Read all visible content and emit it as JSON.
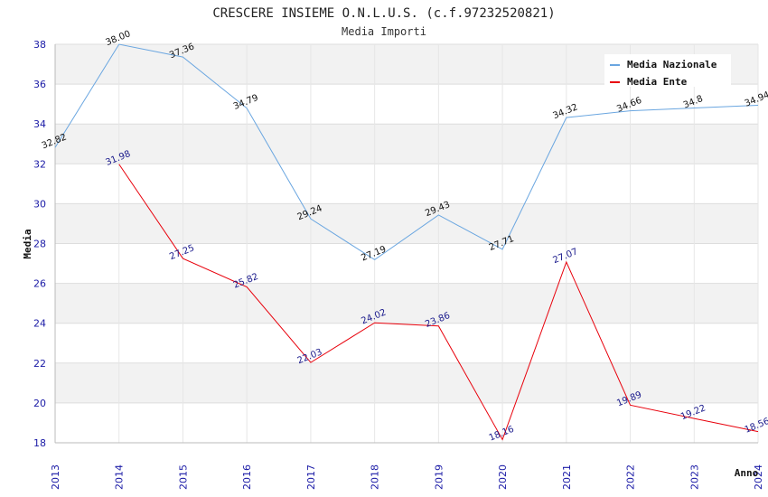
{
  "chart_data": {
    "type": "line",
    "title": "CRESCERE INSIEME O.N.L.U.S. (c.f.97232520821)",
    "subtitle": "Media Importi",
    "xlabel": "Anno",
    "ylabel": "Media",
    "ylim": [
      18,
      38
    ],
    "yticks": [
      "18",
      "20",
      "22",
      "24",
      "26",
      "28",
      "30",
      "32",
      "34",
      "36",
      "38"
    ],
    "categories": [
      "2013",
      "2014",
      "2015",
      "2016",
      "2017",
      "2018",
      "2019",
      "2020",
      "2021",
      "2022",
      "2023",
      "2024"
    ],
    "grid": true,
    "legend_position": "top-right",
    "series": [
      {
        "name": "Media Nazionale",
        "color": "#6aa6e0",
        "label_color": "#111111",
        "values": [
          32.82,
          38.0,
          37.36,
          34.79,
          29.24,
          27.19,
          29.43,
          27.71,
          34.32,
          34.66,
          34.8,
          34.94
        ],
        "labels": [
          "32.82",
          "38.00",
          "37.36",
          "34.79",
          "29.24",
          "27.19",
          "29.43",
          "27.71",
          "34.32",
          "34.66",
          "34.8",
          "34.94"
        ]
      },
      {
        "name": "Media Ente",
        "color": "#e8000b",
        "label_color": "#1a1a8c",
        "values": [
          null,
          31.98,
          27.25,
          25.82,
          22.03,
          24.02,
          23.86,
          18.16,
          27.07,
          19.89,
          19.22,
          18.56
        ],
        "labels": [
          null,
          "31.98",
          "27.25",
          "25.82",
          "22.03",
          "24.02",
          "23.86",
          "18.16",
          "27.07",
          "19.89",
          "19.22",
          "18.56"
        ]
      }
    ]
  }
}
